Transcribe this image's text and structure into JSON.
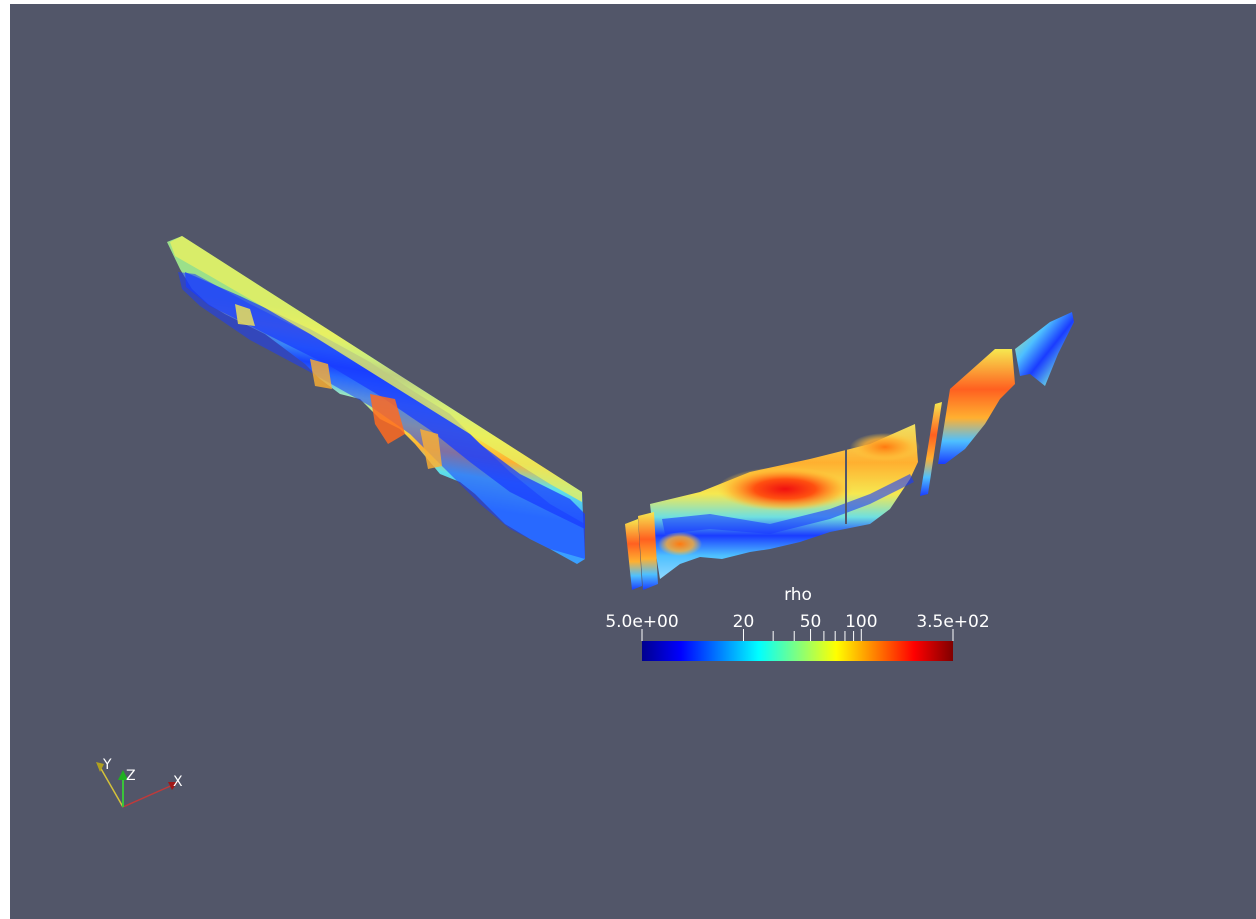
{
  "render_view": {
    "background_color": "#525669"
  },
  "scalar_bar": {
    "title": "rho",
    "colormap": "jet",
    "scale": "log",
    "range": [
      5.0,
      350.0
    ],
    "labels": [
      {
        "text": "5.0e+00",
        "value": 5
      },
      {
        "text": "20",
        "value": 20
      },
      {
        "text": "50",
        "value": 50
      },
      {
        "text": "100",
        "value": 100
      },
      {
        "text": "3.5e+02",
        "value": 350
      }
    ],
    "minor_ticks": [
      30,
      40,
      60,
      70,
      80,
      90
    ]
  },
  "orientation_axes": {
    "labels": {
      "x": "X",
      "y": "Y",
      "z": "Z"
    },
    "colors": {
      "x": "#c03a3a",
      "y": "#d4c23a",
      "z": "#3ac43a"
    }
  },
  "mesh": {
    "sections": [
      "left-profile",
      "right-profile",
      "right-strip-1",
      "right-strip-2",
      "right-strip-3",
      "right-strip-4",
      "right-strip-5"
    ]
  }
}
